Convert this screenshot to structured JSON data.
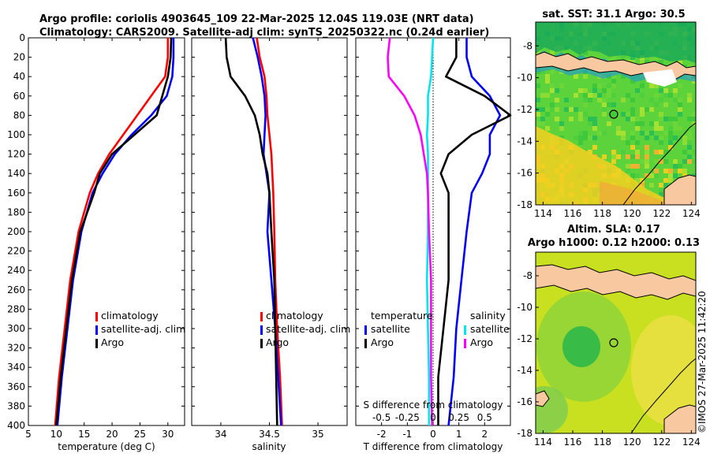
{
  "title": {
    "line1": "Argo profile: coriolis 4903645_109 22-Mar-2025 12.04S 119.03E (NRT data)",
    "line2": "Climatology: CARS2009. Satellite-adj clim: synTS_20250322.nc (0.24d earlier)"
  },
  "credit": "©IMOS 27-Mar-2025 11:42:20",
  "colors": {
    "climatology": "#ff0000",
    "satellite": "#0000ff",
    "argo": "#000000",
    "sat_salinity": "#00e5ee",
    "clim_salinity": "#ff00ff",
    "land": "#f8c8a0"
  },
  "chart_data": [
    {
      "type": "line",
      "id": "temperature",
      "xlabel": "temperature (deg C)",
      "ylabel": "",
      "xlim": [
        5,
        33
      ],
      "ylim": [
        400,
        0
      ],
      "xticks": [
        "5",
        "10",
        "15",
        "20",
        "25",
        "30"
      ],
      "yticks": [
        "0",
        "20",
        "40",
        "60",
        "80",
        "100",
        "120",
        "140",
        "160",
        "180",
        "200",
        "220",
        "240",
        "260",
        "280",
        "300",
        "320",
        "340",
        "360",
        "380",
        "400"
      ],
      "depth": [
        0,
        20,
        40,
        60,
        80,
        100,
        120,
        140,
        160,
        200,
        250,
        300,
        350,
        400
      ],
      "series": [
        {
          "name": "climatology",
          "values": [
            30.0,
            30.0,
            29.5,
            27.0,
            24.5,
            22.0,
            19.5,
            17.5,
            16.0,
            14.0,
            12.5,
            11.5,
            10.5,
            9.8
          ]
        },
        {
          "name": "satellite-adj. clim",
          "values": [
            31.0,
            31.0,
            30.8,
            29.8,
            27.0,
            23.5,
            20.5,
            18.3,
            16.5,
            14.5,
            13.0,
            12.0,
            11.0,
            10.2
          ]
        },
        {
          "name": "Argo",
          "values": [
            30.6,
            30.5,
            30.0,
            29.0,
            28.0,
            24.0,
            20.0,
            17.8,
            16.8,
            14.3,
            12.8,
            11.8,
            10.8,
            10.0
          ]
        }
      ],
      "legend": [
        "climatology",
        "satellite-adj. clim",
        "Argo"
      ]
    },
    {
      "type": "line",
      "id": "salinity",
      "xlabel": "salinity",
      "xlim": [
        33.7,
        35.3
      ],
      "ylim": [
        400,
        0
      ],
      "xticks": [
        "34",
        "34.5",
        "35"
      ],
      "depth": [
        0,
        20,
        40,
        60,
        80,
        100,
        120,
        140,
        160,
        200,
        250,
        300,
        350,
        400
      ],
      "series": [
        {
          "name": "climatology",
          "values": [
            34.37,
            34.4,
            34.45,
            34.47,
            34.48,
            34.5,
            34.52,
            34.53,
            34.54,
            34.55,
            34.56,
            34.58,
            34.61,
            34.63
          ]
        },
        {
          "name": "satellite-adj. clim",
          "values": [
            34.33,
            34.38,
            34.42,
            34.45,
            34.46,
            34.45,
            34.44,
            34.47,
            34.5,
            34.48,
            34.52,
            34.56,
            34.59,
            34.62
          ]
        },
        {
          "name": "Argo",
          "values": [
            34.05,
            34.06,
            34.1,
            34.25,
            34.35,
            34.4,
            34.43,
            34.48,
            34.5,
            34.52,
            34.55,
            34.56,
            34.57,
            34.58
          ]
        }
      ],
      "legend": [
        "climatology",
        "satellite-adj. clim",
        "Argo"
      ]
    },
    {
      "type": "line",
      "id": "differences",
      "xlabel": "T difference from climatology",
      "xlabel_top": "S difference from climatology",
      "xlim": [
        -3,
        3
      ],
      "ylim": [
        400,
        0
      ],
      "xticks": [
        "-2",
        "-1",
        "0",
        "1",
        "2"
      ],
      "xticks_top": [
        "-0.5",
        "-0.25",
        "0",
        "0.25",
        "0.5"
      ],
      "depth": [
        0,
        20,
        40,
        60,
        80,
        100,
        120,
        140,
        160,
        200,
        250,
        300,
        350,
        400
      ],
      "series": [
        {
          "name": "temperature satellite",
          "values": [
            1.3,
            1.3,
            1.5,
            2.2,
            2.6,
            2.2,
            2.2,
            1.9,
            1.5,
            1.3,
            1.1,
            0.9,
            0.8,
            0.6
          ]
        },
        {
          "name": "temperature Argo",
          "values": [
            0.9,
            0.9,
            0.5,
            2.0,
            3.0,
            1.5,
            0.6,
            0.3,
            0.6,
            0.6,
            0.6,
            0.4,
            0.2,
            0.2
          ]
        },
        {
          "name": "salinity satellite",
          "values": [
            0.0,
            -0.01,
            -0.02,
            -0.05,
            -0.05,
            -0.06,
            -0.05,
            -0.05,
            -0.05,
            -0.05,
            -0.06,
            -0.05,
            -0.04,
            -0.04
          ]
        },
        {
          "name": "salinity Argo",
          "values": [
            -0.42,
            -0.44,
            -0.43,
            -0.28,
            -0.18,
            -0.12,
            -0.09,
            -0.06,
            -0.05,
            -0.04,
            -0.02,
            -0.02,
            -0.02,
            -0.01
          ]
        }
      ],
      "legend_temperature": {
        "title": "temperature",
        "items": [
          "satellite",
          "Argo"
        ]
      },
      "legend_salinity": {
        "title": "salinity",
        "items": [
          "satellite",
          "Argo"
        ]
      }
    },
    {
      "type": "heatmap",
      "id": "sst_map",
      "title": "sat. SST: 31.1 Argo: 30.5",
      "xlim": [
        113.5,
        124.3
      ],
      "ylim": [
        -18,
        -6.5
      ],
      "xticks": [
        "114",
        "116",
        "118",
        "120",
        "122",
        "124"
      ],
      "yticks": [
        "-8",
        "-10",
        "-12",
        "-14",
        "-16",
        "-18"
      ],
      "marker": {
        "lon": 119.03,
        "lat": -12.04
      }
    },
    {
      "type": "heatmap",
      "id": "sla_map",
      "title_line1": "Altim. SLA: 0.17",
      "title_line2": "Argo h1000: 0.12 h2000: 0.13",
      "xlim": [
        113.5,
        124.3
      ],
      "ylim": [
        -18,
        -6.5
      ],
      "xticks": [
        "114",
        "116",
        "118",
        "120",
        "122",
        "124"
      ],
      "yticks": [
        "-8",
        "-10",
        "-12",
        "-14",
        "-16",
        "-18"
      ],
      "marker": {
        "lon": 119.03,
        "lat": -12.04
      }
    }
  ]
}
